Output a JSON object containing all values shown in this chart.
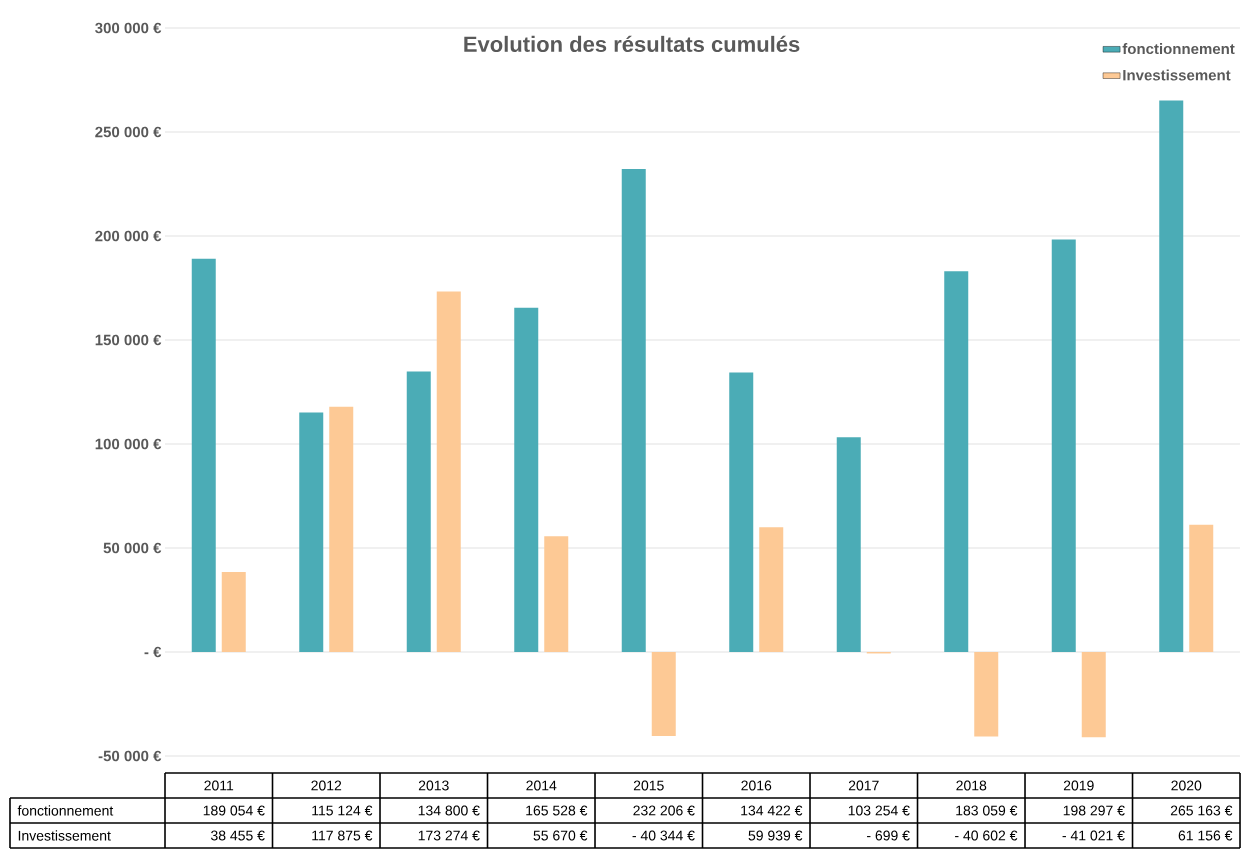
{
  "chart_data": {
    "type": "bar",
    "title": "Evolution des résultats cumulés",
    "categories": [
      "2011",
      "2012",
      "2013",
      "2014",
      "2015",
      "2016",
      "2017",
      "2018",
      "2019",
      "2020"
    ],
    "series": [
      {
        "name": "fonctionnement",
        "color": "#4bacb6",
        "values": [
          189054,
          115124,
          134800,
          165528,
          232206,
          134422,
          103254,
          183059,
          198297,
          265163
        ],
        "value_labels": [
          "189 054 €",
          "115 124 €",
          "134 800 €",
          "165 528 €",
          "232 206 €",
          "134 422 €",
          "103 254 €",
          "183 059 €",
          "198 297 €",
          "265 163 €"
        ]
      },
      {
        "name": "Investissement",
        "color": "#fdc995",
        "values": [
          38455,
          117875,
          173274,
          55670,
          -40344,
          59939,
          -699,
          -40602,
          -41021,
          61156
        ],
        "value_labels": [
          "38 455 €",
          "117 875 €",
          "173 274 €",
          "55 670 €",
          "- 40 344 €",
          "59 939 €",
          "- 699 €",
          "- 40 602 €",
          "- 41 021 €",
          "61 156 €"
        ]
      }
    ],
    "ylim": [
      -50000,
      300000
    ],
    "yticks": [
      {
        "value": -50000,
        "label": "-50 000 €"
      },
      {
        "value": 0,
        "label": "- €"
      },
      {
        "value": 50000,
        "label": "50 000 €"
      },
      {
        "value": 100000,
        "label": "100 000 €"
      },
      {
        "value": 150000,
        "label": "150 000 €"
      },
      {
        "value": 200000,
        "label": "200 000 €"
      },
      {
        "value": 250000,
        "label": "250 000 €"
      },
      {
        "value": 300000,
        "label": "300 000 €"
      }
    ],
    "grid": "y",
    "legend": "top right"
  }
}
